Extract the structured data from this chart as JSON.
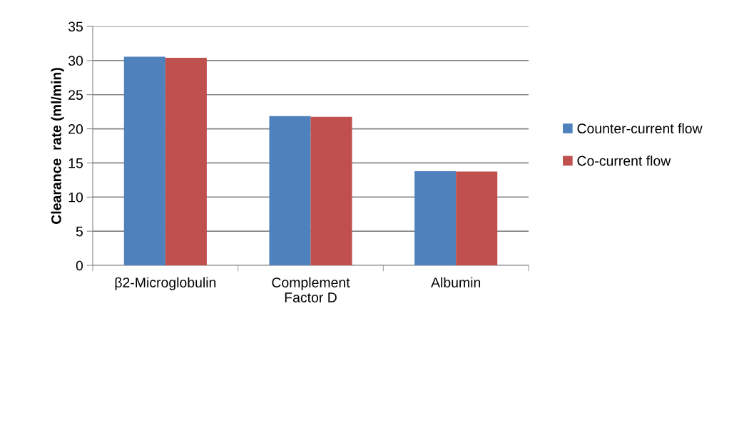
{
  "chart_data": {
    "type": "bar",
    "ylabel": "Clearance  rate (ml/min)",
    "categories": [
      "β2-Microglobulin",
      "Complement\nFactor D",
      "Albumin"
    ],
    "series": [
      {
        "name": "Counter-current flow",
        "color": "#4f81bd",
        "values": [
          30.55,
          21.85,
          13.8
        ]
      },
      {
        "name": "Co-current flow",
        "color": "#c0504d",
        "values": [
          30.4,
          21.77,
          13.75
        ]
      }
    ],
    "ylim": [
      0,
      35
    ],
    "yticks": [
      0,
      5,
      10,
      15,
      20,
      25,
      30,
      35
    ],
    "grid": "y",
    "legend": "right"
  }
}
